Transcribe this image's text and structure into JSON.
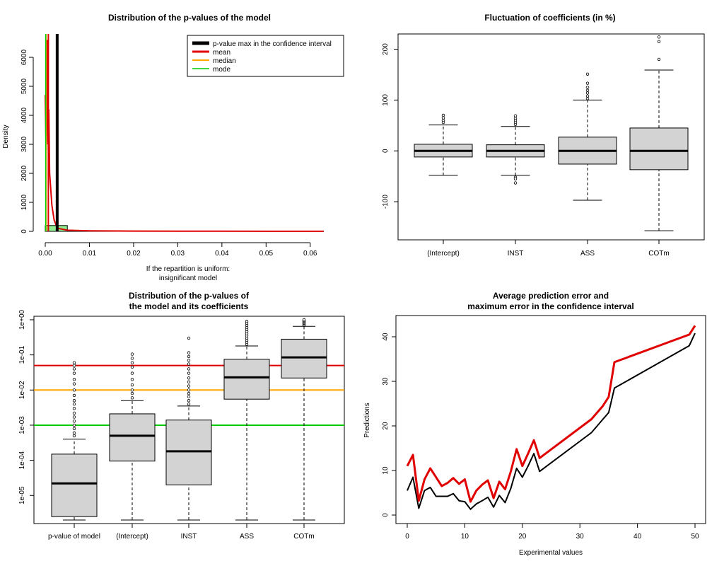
{
  "colors": {
    "black": "#000000",
    "red": "#e00000",
    "orange": "#ffa500",
    "green": "#00cc00",
    "box_fill": "#d3d3d3",
    "hist_fill": "#90ee90"
  },
  "chart_data": [
    {
      "type": "histogram",
      "title": "Distribution of the p-values of the model",
      "xlabel": "If the repartition is uniform:",
      "xlabel2": "insignificant model",
      "ylabel": "Density",
      "xlim": [
        0,
        0.065
      ],
      "ylim": [
        0,
        7000
      ],
      "x_ticks": [
        0.0,
        0.01,
        0.02,
        0.03,
        0.04,
        0.05,
        0.06
      ],
      "x_tick_labels": [
        "0.00",
        "0.01",
        "0.02",
        "0.03",
        "0.04",
        "0.05",
        "0.06"
      ],
      "y_ticks": [
        0,
        1000,
        2000,
        3000,
        4000,
        5000,
        6000
      ],
      "y_tick_labels": [
        "0",
        "1000",
        "2000",
        "3000",
        "4000",
        "5000",
        "6000"
      ],
      "bins": [
        {
          "x0": 0.0,
          "x1": 0.005,
          "value": 200
        },
        {
          "x0": 0.005,
          "x1": 0.063,
          "value": 10
        }
      ],
      "density_curve": [
        [
          0.0,
          4700
        ],
        [
          0.0002,
          2800
        ],
        [
          0.0004,
          6600
        ],
        [
          0.0006,
          3000
        ],
        [
          0.0008,
          4200
        ],
        [
          0.001,
          2000
        ],
        [
          0.0015,
          900
        ],
        [
          0.002,
          400
        ],
        [
          0.0025,
          200
        ],
        [
          0.003,
          100
        ],
        [
          0.005,
          40
        ],
        [
          0.01,
          20
        ],
        [
          0.02,
          10
        ],
        [
          0.04,
          5
        ],
        [
          0.063,
          2
        ]
      ],
      "vlines": [
        {
          "name": "p-value max in the confidence interval",
          "x": 0.0027,
          "color": "#000000",
          "width": 4
        },
        {
          "name": "mean",
          "x": 0.0007,
          "color": "#e00000",
          "width": 2
        },
        {
          "name": "median",
          "x": 0.0002,
          "color": "#ffa500",
          "width": 1.5
        },
        {
          "name": "mode",
          "x": 0.0001,
          "color": "#00cc00",
          "width": 1.5
        }
      ],
      "legend": {
        "placement": "top-right",
        "items": [
          {
            "label": "p-value max in the confidence interval",
            "color": "#000000",
            "lw": 5
          },
          {
            "label": "mean",
            "color": "#e00000",
            "lw": 3
          },
          {
            "label": "median",
            "color": "#ffa500",
            "lw": 2
          },
          {
            "label": "mode",
            "color": "#00cc00",
            "lw": 1.5
          }
        ]
      }
    },
    {
      "type": "boxplot",
      "title": "Fluctuation of coefficients (in %)",
      "categories": [
        "(Intercept)",
        "INST",
        "ASS",
        "COTm"
      ],
      "ylim": [
        -175,
        230
      ],
      "y_ticks": [
        -100,
        0,
        100,
        200
      ],
      "y_tick_labels": [
        "-100",
        "0",
        "100",
        "200"
      ],
      "boxes": [
        {
          "whisker_low": -48,
          "q1": -12,
          "median": 0,
          "q3": 13,
          "whisker_high": 51,
          "outliers": [
            56,
            60,
            65,
            70
          ]
        },
        {
          "whisker_low": -48,
          "q1": -12,
          "median": 0,
          "q3": 12,
          "whisker_high": 48,
          "outliers": [
            -52,
            -55,
            -63,
            52,
            56,
            60,
            64,
            69
          ]
        },
        {
          "whisker_low": -97,
          "q1": -26,
          "median": 0,
          "q3": 27,
          "whisker_high": 100,
          "outliers": [
            103,
            108,
            114,
            119,
            125,
            133,
            151
          ]
        },
        {
          "whisker_low": -157,
          "q1": -37,
          "median": 0,
          "q3": 45,
          "whisker_high": 159,
          "outliers": [
            180,
            215,
            224
          ]
        }
      ]
    },
    {
      "type": "boxplot",
      "title": "Distribution of the p-values of",
      "title2": "the model and its coefficients",
      "y_scale": "log10",
      "categories": [
        "p-value of model",
        "(Intercept)",
        "INST",
        "ASS",
        "COTm"
      ],
      "ylim_log10": [
        -5.8,
        0.1
      ],
      "y_ticks": [
        1e-05,
        0.0001,
        0.001,
        0.01,
        0.1,
        1
      ],
      "y_tick_labels": [
        "1e-05",
        "1e-04",
        "1e-03",
        "1e-02",
        "1e-01",
        "1e+00"
      ],
      "boxes": [
        {
          "whisker_low": 2e-06,
          "q1": 2.5e-06,
          "median": 2.2e-05,
          "q3": 0.00015,
          "whisker_high": 0.0004,
          "outliers": [
            0.0005,
            0.0006,
            0.0008,
            0.001,
            0.0013,
            0.0017,
            0.0022,
            0.003,
            0.004,
            0.005,
            0.007,
            0.01,
            0.015,
            0.02,
            0.03,
            0.04,
            0.05,
            0.06
          ]
        },
        {
          "whisker_low": 2e-06,
          "q1": 9.5e-05,
          "median": 0.0005,
          "q3": 0.0021,
          "whisker_high": 0.005,
          "outliers": [
            0.006,
            0.008,
            0.01,
            0.014,
            0.02,
            0.03,
            0.045,
            0.06,
            0.08,
            0.105
          ]
        },
        {
          "whisker_low": 2e-06,
          "q1": 2e-05,
          "median": 0.00018,
          "q3": 0.0014,
          "whisker_high": 0.0035,
          "outliers": [
            0.004,
            0.005,
            0.0065,
            0.008,
            0.01,
            0.013,
            0.017,
            0.022,
            0.03,
            0.04,
            0.055,
            0.07,
            0.09,
            0.115,
            0.3
          ]
        },
        {
          "whisker_low": 2e-06,
          "q1": 0.0055,
          "median": 0.023,
          "q3": 0.075,
          "whisker_high": 0.18,
          "outliers": [
            0.2,
            0.23,
            0.26,
            0.3,
            0.35,
            0.4,
            0.46,
            0.53,
            0.6,
            0.7,
            0.8,
            0.9
          ]
        },
        {
          "whisker_low": 2e-06,
          "q1": 0.022,
          "median": 0.085,
          "q3": 0.28,
          "whisker_high": 0.65,
          "outliers": [
            0.7,
            0.75,
            0.8,
            0.85,
            0.9,
            0.95,
            1.0
          ]
        }
      ],
      "hlines": [
        {
          "y": 0.05,
          "color": "#e00000"
        },
        {
          "y": 0.01,
          "color": "#ffa500"
        },
        {
          "y": 0.001,
          "color": "#00cc00"
        }
      ]
    },
    {
      "type": "line",
      "title": "Average prediction error and",
      "title2": "maximum error in the confidence interval",
      "xlabel": "Experimental values",
      "ylabel": "Predictions",
      "xlim": [
        -1,
        51
      ],
      "ylim": [
        -1,
        44
      ],
      "x_ticks": [
        0,
        10,
        20,
        30,
        40,
        50
      ],
      "x_tick_labels": [
        "0",
        "10",
        "20",
        "30",
        "40",
        "50"
      ],
      "y_ticks": [
        0,
        10,
        20,
        30,
        40
      ],
      "y_tick_labels": [
        "0",
        "10",
        "20",
        "30",
        "40"
      ],
      "x": [
        0,
        1,
        2,
        3,
        4,
        5,
        6,
        7,
        8,
        9,
        10,
        11,
        12,
        13,
        14,
        15,
        16,
        17,
        18,
        19,
        20,
        21,
        22,
        23,
        32,
        34,
        35,
        36,
        49,
        50
      ],
      "series": [
        {
          "color": "#000000",
          "width": 2,
          "values": [
            5.5,
            8.5,
            1.5,
            5.5,
            6.2,
            4.2,
            4.2,
            4.2,
            4.8,
            3.2,
            3.0,
            1.3,
            2.5,
            3.2,
            4.0,
            1.8,
            4.4,
            2.8,
            6.0,
            10.5,
            8.5,
            11.0,
            13.8,
            9.8,
            18.5,
            21.5,
            23.0,
            28.5,
            38.0,
            40.8
          ]
        },
        {
          "color": "#e00000",
          "width": 3,
          "values": [
            11.0,
            13.5,
            3.2,
            8.0,
            10.5,
            8.5,
            6.5,
            7.2,
            8.3,
            7.0,
            8.0,
            3.0,
            5.5,
            6.8,
            7.8,
            3.8,
            7.5,
            5.8,
            9.8,
            14.8,
            11.0,
            13.8,
            16.8,
            12.8,
            21.5,
            24.5,
            26.5,
            34.3,
            40.5,
            42.5
          ]
        }
      ]
    }
  ]
}
